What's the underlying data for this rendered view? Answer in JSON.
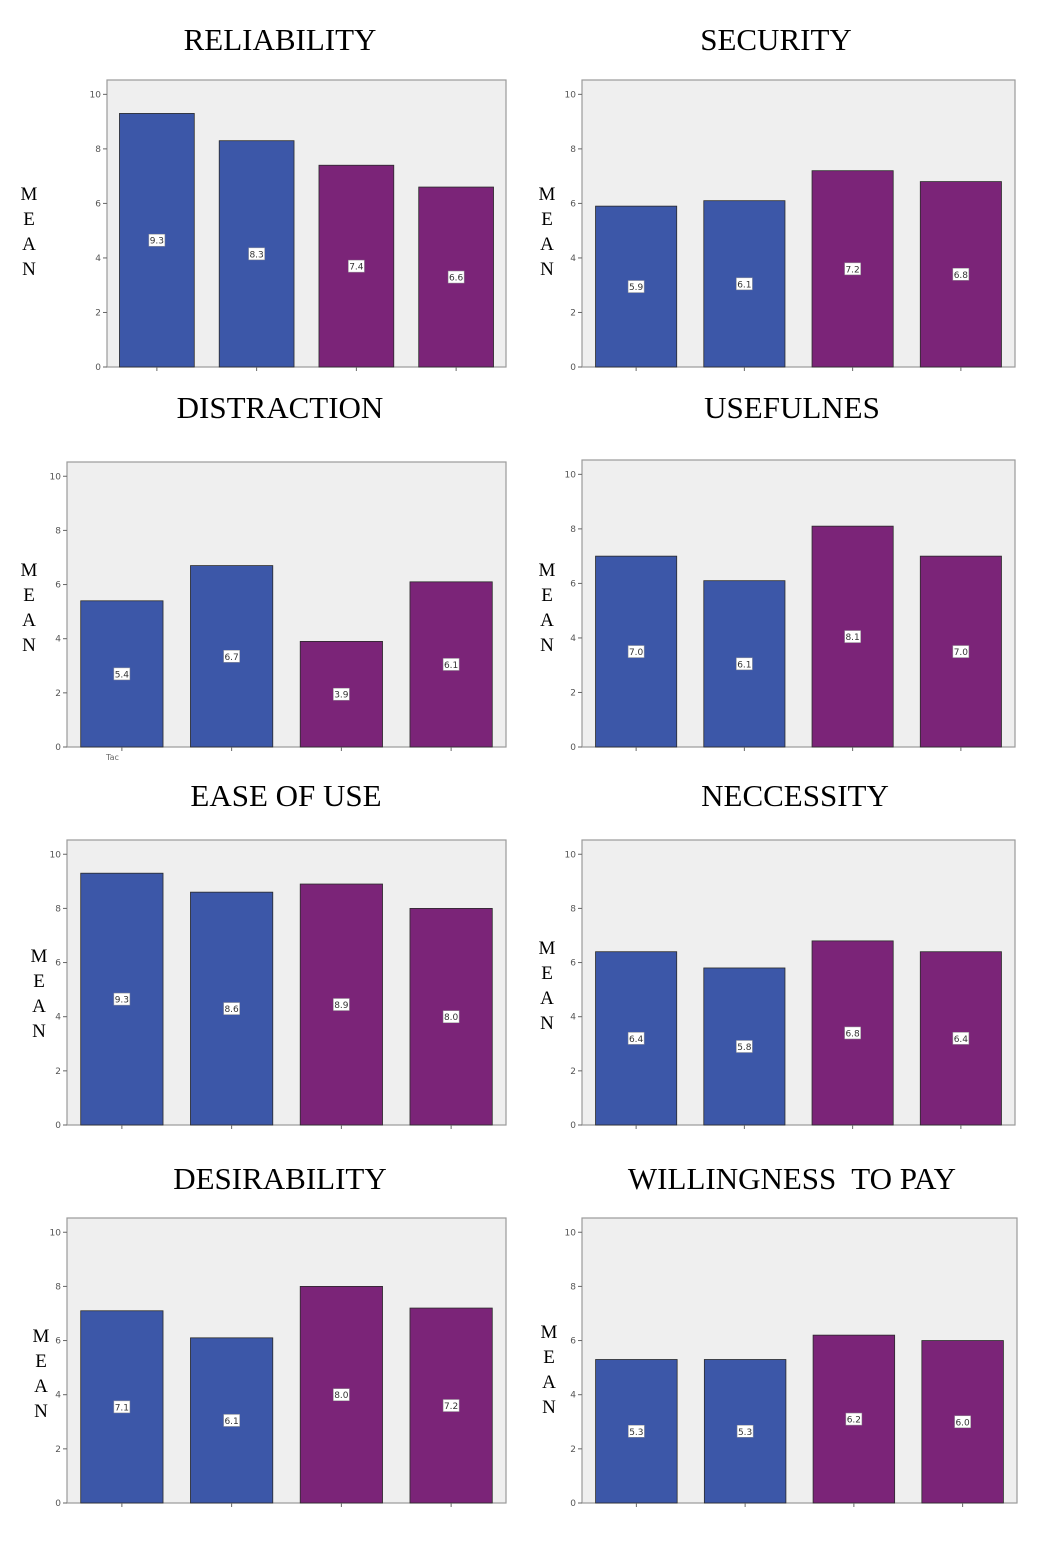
{
  "colors": {
    "blue": "#3c57a8",
    "purple": "#7b2478",
    "plot_bg": "#efefef",
    "frame": "#9a9a9a"
  },
  "ylabel_letters": [
    "M",
    "E",
    "A",
    "N"
  ],
  "chart_data": [
    {
      "type": "bar",
      "title": "RELIABILITY",
      "ylim": [
        0,
        10
      ],
      "yticks": [
        "0",
        "2",
        "4",
        "6",
        "8",
        "10"
      ],
      "values": [
        9.3,
        8.3,
        7.4,
        6.6
      ],
      "data_labels": [
        "9.3",
        "8.3",
        "7.4",
        "6.6"
      ],
      "bar_colors": [
        "blue",
        "blue",
        "purple",
        "purple"
      ]
    },
    {
      "type": "bar",
      "title": "SECURITY",
      "ylim": [
        0,
        10
      ],
      "yticks": [
        "0",
        "2",
        "4",
        "6",
        "8",
        "10"
      ],
      "values": [
        5.9,
        6.1,
        7.2,
        6.8
      ],
      "data_labels": [
        "5.9",
        "6.1",
        "7.2",
        "6.8"
      ],
      "bar_colors": [
        "blue",
        "blue",
        "purple",
        "purple"
      ]
    },
    {
      "type": "bar",
      "title": "DISTRACTION",
      "ylim": [
        0,
        10
      ],
      "yticks": [
        "0",
        "2",
        "4",
        "6",
        "8",
        "10"
      ],
      "values": [
        5.4,
        6.7,
        3.9,
        6.1
      ],
      "data_labels": [
        "5.4",
        "6.7",
        "3.9",
        "6.1"
      ],
      "bar_colors": [
        "blue",
        "blue",
        "purple",
        "purple"
      ],
      "x_note": "Tac"
    },
    {
      "type": "bar",
      "title": "USEFULNES",
      "ylim": [
        0,
        10
      ],
      "yticks": [
        "0",
        "2",
        "4",
        "6",
        "8",
        "10"
      ],
      "values": [
        7.0,
        6.1,
        8.1,
        7.0
      ],
      "data_labels": [
        "7.0",
        "6.1",
        "8.1",
        "7.0"
      ],
      "bar_colors": [
        "blue",
        "blue",
        "purple",
        "purple"
      ]
    },
    {
      "type": "bar",
      "title": "EASE OF USE",
      "ylim": [
        0,
        10
      ],
      "yticks": [
        "0",
        "2",
        "4",
        "6",
        "8",
        "10"
      ],
      "values": [
        9.3,
        8.6,
        8.9,
        8.0
      ],
      "data_labels": [
        "9.3",
        "8.6",
        "8.9",
        "8.0"
      ],
      "bar_colors": [
        "blue",
        "blue",
        "purple",
        "purple"
      ]
    },
    {
      "type": "bar",
      "title": "NECCESSITY",
      "ylim": [
        0,
        10
      ],
      "yticks": [
        "0",
        "2",
        "4",
        "6",
        "8",
        "10"
      ],
      "values": [
        6.4,
        5.8,
        6.8,
        6.4
      ],
      "data_labels": [
        "6.4",
        "5.8",
        "6.8",
        "6.4"
      ],
      "bar_colors": [
        "blue",
        "blue",
        "purple",
        "purple"
      ]
    },
    {
      "type": "bar",
      "title": "DESIRABILITY",
      "ylim": [
        0,
        10
      ],
      "yticks": [
        "0",
        "2",
        "4",
        "6",
        "8",
        "10"
      ],
      "values": [
        7.1,
        6.1,
        8.0,
        7.2
      ],
      "data_labels": [
        "7.1",
        "6.1",
        "8.0",
        "7.2"
      ],
      "bar_colors": [
        "blue",
        "blue",
        "purple",
        "purple"
      ]
    },
    {
      "type": "bar",
      "title": "WILLINGNESS  TO PAY",
      "ylim": [
        0,
        10
      ],
      "yticks": [
        "0",
        "2",
        "4",
        "6",
        "8",
        "10"
      ],
      "values": [
        5.3,
        5.3,
        6.2,
        6.0
      ],
      "data_labels": [
        "5.3",
        "5.3",
        "6.2",
        "6.0"
      ],
      "bar_colors": [
        "blue",
        "blue",
        "purple",
        "purple"
      ]
    }
  ]
}
